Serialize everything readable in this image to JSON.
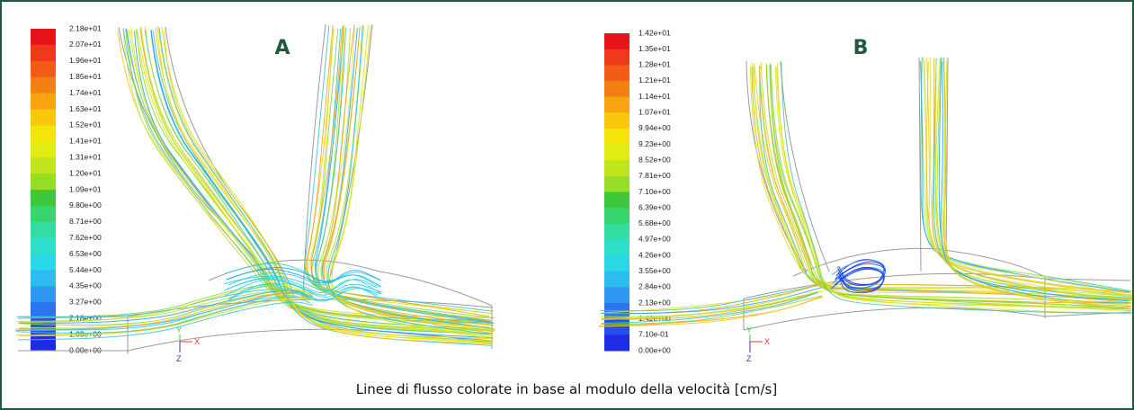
{
  "panels": [
    {
      "label": "A",
      "axes": [
        "Y",
        "X",
        "Z"
      ],
      "colorbar_labels": [
        "2.18e+01",
        "2.07e+01",
        "1.96e+01",
        "1.85e+01",
        "1.74e+01",
        "1.63e+01",
        "1.52e+01",
        "1.41e+01",
        "1.31e+01",
        "1.20e+01",
        "1.09e+01",
        "9.80e+00",
        "8.71e+00",
        "7.62e+00",
        "6.53e+00",
        "5.44e+00",
        "4.35e+00",
        "3.27e+00",
        "2.18e+00",
        "1.09e+00",
        "0.00e+00"
      ]
    },
    {
      "label": "B",
      "axes": [
        "Y",
        "X",
        "Z"
      ],
      "colorbar_labels": [
        "1.42e+01",
        "1.35e+01",
        "1.28e+01",
        "1.21e+01",
        "1.14e+01",
        "1.07e+01",
        "9.94e+00",
        "9.23e+00",
        "8.52e+00",
        "7.81e+00",
        "7.10e+00",
        "6.39e+00",
        "5.68e+00",
        "4.97e+00",
        "4.26e+00",
        "3.55e+00",
        "2.84e+00",
        "2.13e+00",
        "1.42e+00",
        "7.10e-01",
        "0.00e+00"
      ]
    }
  ],
  "caption": "Linee di flusso colorate in base al modulo della velocità [cm/s]"
}
